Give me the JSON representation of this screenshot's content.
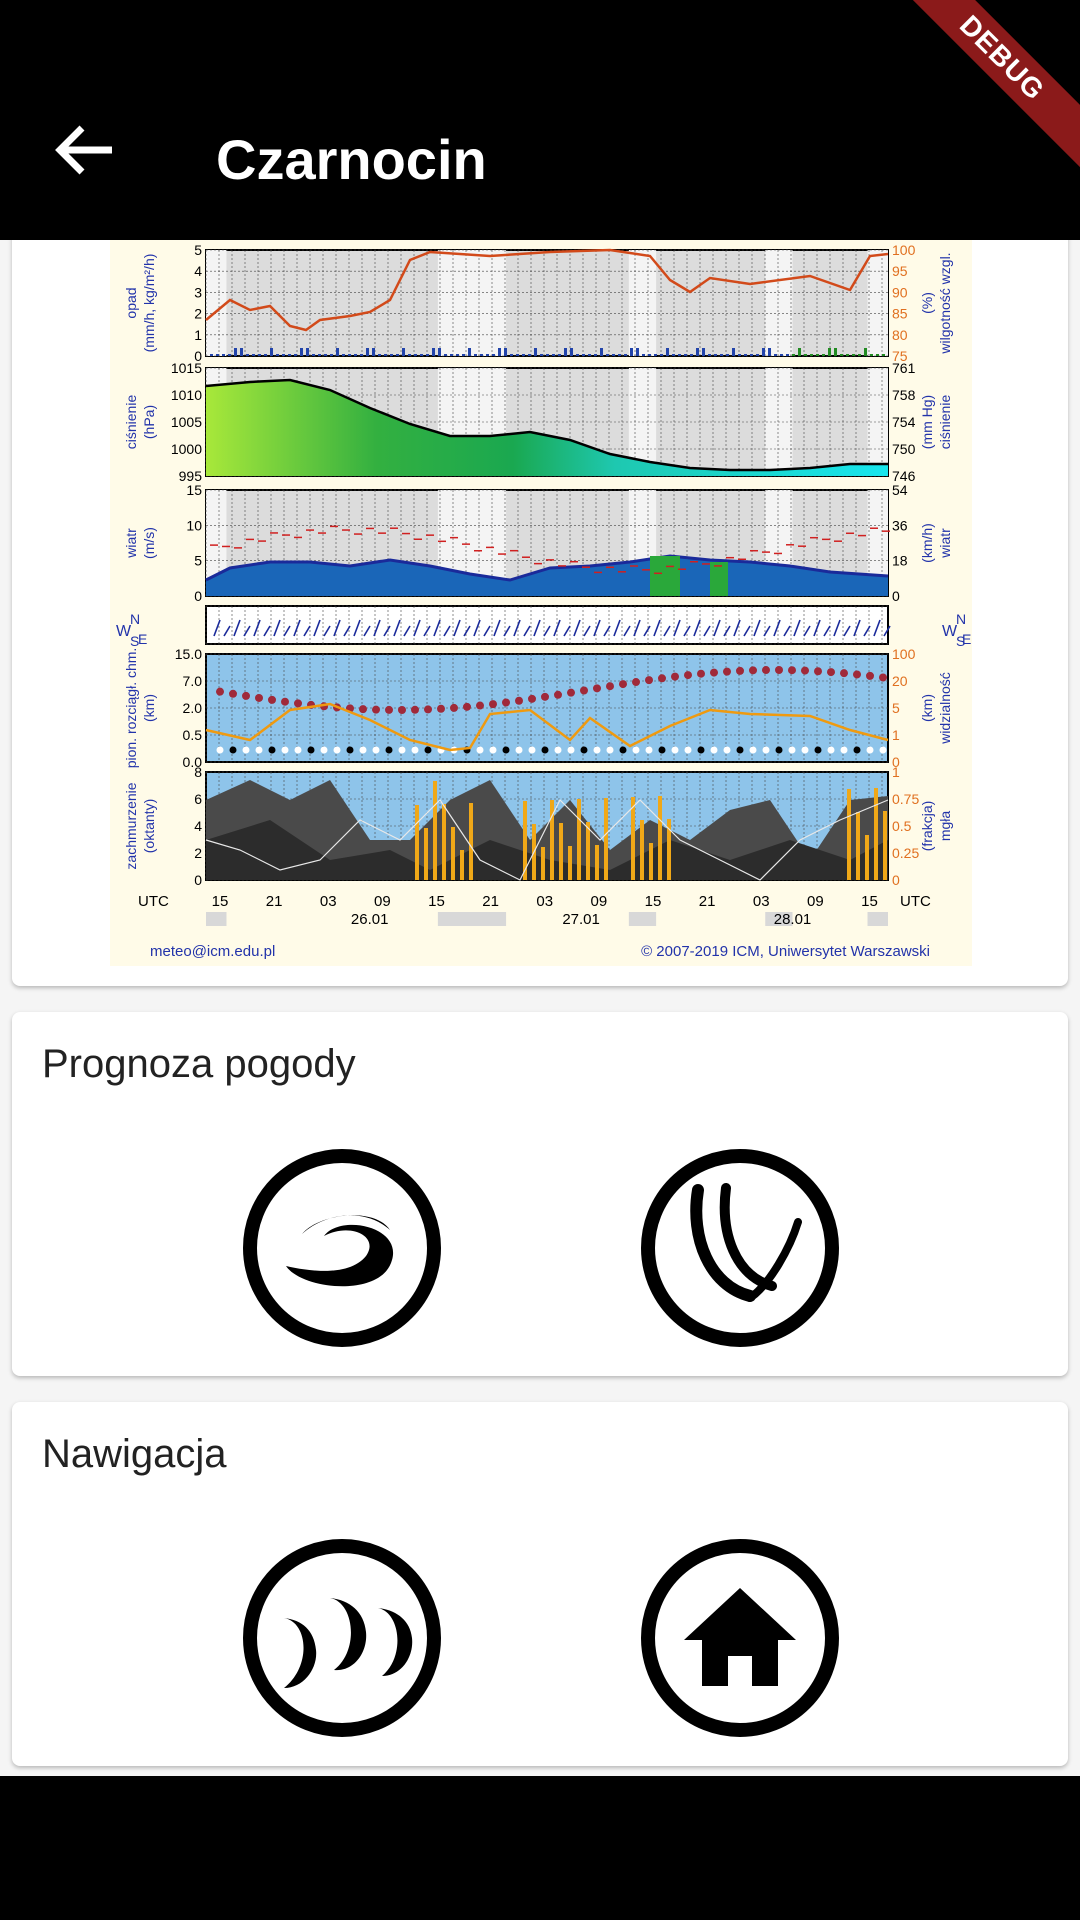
{
  "appbar": {
    "title": "Czarnocin",
    "back_icon": "arrow-back-icon"
  },
  "debug_banner": "DEBUG",
  "meteogram": {
    "panels": [
      {
        "left_label_1": "opad",
        "left_label_2": "(mm/h, kg/m²/h)",
        "right_label_1": "(%)",
        "right_label_2": "wilgotność wzgl.",
        "left_ticks": [
          "5",
          "4",
          "3",
          "2",
          "1",
          "0"
        ],
        "right_ticks": [
          "100",
          "95",
          "90",
          "85",
          "80",
          "75"
        ]
      },
      {
        "left_label_1": "ciśnienie",
        "left_label_2": "(hPa)",
        "right_label_1": "(mm Hg)",
        "right_label_2": "ciśnienie",
        "left_ticks": [
          "1015",
          "1010",
          "1005",
          "1000",
          "995"
        ],
        "right_ticks": [
          "761",
          "758",
          "754",
          "750",
          "746"
        ]
      },
      {
        "left_label_1": "wiatr",
        "left_label_2": "(m/s)",
        "right_label_1": "(km/h)",
        "right_label_2": "wiatr",
        "left_ticks": [
          "15",
          "10",
          "5",
          "0"
        ],
        "right_ticks": [
          "54",
          "36",
          "18",
          "0"
        ]
      },
      {
        "left_label_1": "W",
        "left_label_2": "E",
        "right_label_1": "W",
        "right_label_2": "E",
        "compass_n": "N",
        "compass_s": "S",
        "left_ticks": [],
        "right_ticks": []
      },
      {
        "left_label_1": "pion. rozciągł. chm.",
        "left_label_2": "(km)",
        "right_label_1": "(km)",
        "right_label_2": "widzialność",
        "left_ticks": [
          "15.0",
          "7.0",
          "2.0",
          "0.5",
          "0.0"
        ],
        "right_ticks": [
          "100",
          "20",
          "5",
          "1",
          "0"
        ]
      },
      {
        "left_label_1": "zachmurzenie",
        "left_label_2": "(oktanty)",
        "right_label_1": "(frakcja)",
        "right_label_2": "mgła",
        "left_ticks": [
          "8",
          "6",
          "4",
          "2",
          "0"
        ],
        "right_ticks": [
          "1",
          "0.75",
          "0.5",
          "0.25",
          "0"
        ]
      }
    ],
    "utc_left": "UTC",
    "utc_right": "UTC",
    "hours": [
      "15",
      "21",
      "03",
      "09",
      "15",
      "21",
      "03",
      "09",
      "15",
      "21",
      "03",
      "09",
      "15"
    ],
    "dates": [
      "26.01",
      "27.01",
      "28.01"
    ],
    "footer_left": "meteo@icm.edu.pl",
    "footer_right": "© 2007-2019 ICM, Uniwersytet Warszawski"
  },
  "forecast": {
    "title": "Prognoza pogody",
    "buttons": [
      {
        "icon": "cyclone-icon"
      },
      {
        "icon": "windy-icon"
      }
    ]
  },
  "navigation": {
    "title": "Nawigacja",
    "buttons": [
      {
        "icon": "moon-phases-icon"
      },
      {
        "icon": "home-icon"
      }
    ]
  }
}
